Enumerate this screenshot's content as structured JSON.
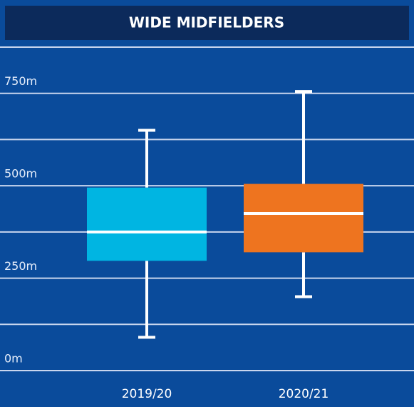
{
  "chart_data": {
    "type": "box",
    "title": "WIDE MIDFIELDERS",
    "categories": [
      "2019/20",
      "2020/21"
    ],
    "boxes": [
      {
        "min": 90,
        "q1": 297,
        "median": 375,
        "q3": 495,
        "max": 650
      },
      {
        "min": 200,
        "q1": 320,
        "median": 425,
        "q3": 505,
        "max": 755
      }
    ],
    "colors": [
      "#00b5e2",
      "#ee741f"
    ],
    "ylim": [
      0,
      875
    ],
    "yticks": [
      {
        "value": 0,
        "label": "0m"
      },
      {
        "value": 250,
        "label": "250m"
      },
      {
        "value": 500,
        "label": "500m"
      },
      {
        "value": 750,
        "label": "750m"
      }
    ],
    "minor_yticks": [
      125,
      375,
      625,
      875
    ],
    "grid": true
  }
}
